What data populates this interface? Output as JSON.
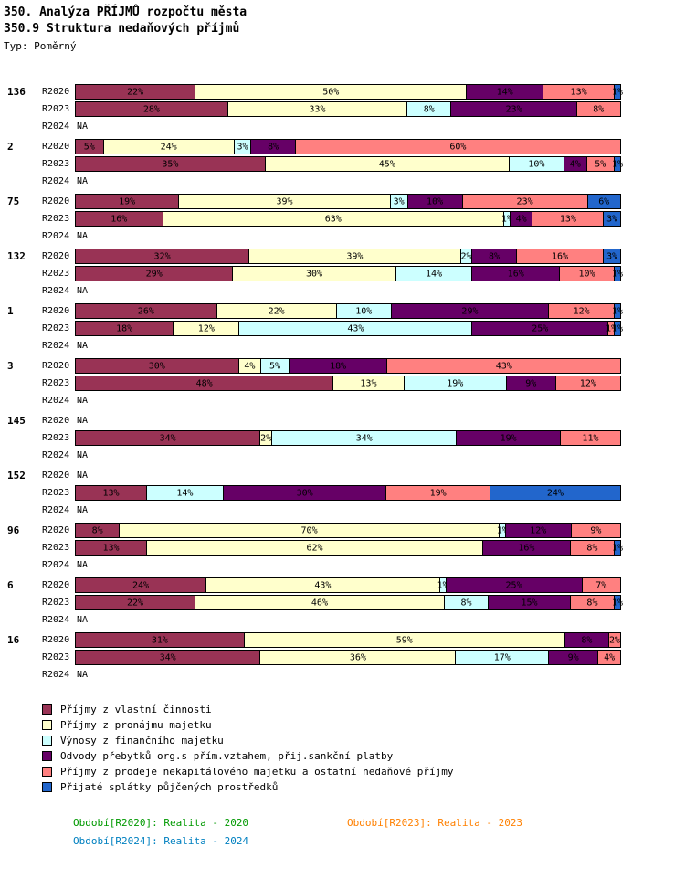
{
  "header": {
    "title1": "350. Analýza PŘÍJMŮ rozpočtu města",
    "title2": "350.9 Struktura nedaňových příjmů",
    "type_label": "Typ: Poměrný"
  },
  "na_label": "NA",
  "chart_data": {
    "type": "bar",
    "variant": "horizontal-stacked-100percent",
    "unit": "%",
    "row_labels": [
      "R2020",
      "R2023",
      "R2024"
    ],
    "legend": [
      {
        "label": "Příjmy z vlastní činnosti",
        "color": "#993355"
      },
      {
        "label": "Příjmy z pronájmu majetku",
        "color": "#FFFFCC"
      },
      {
        "label": "Výnosy z finančního majetku",
        "color": "#CCFFFF"
      },
      {
        "label": "Odvody přebytků org.s přím.vztahem, přij.sankční platby",
        "color": "#660066"
      },
      {
        "label": "Příjmy z prodeje nekapitálového majetku a ostatní nedaňové příjmy",
        "color": "#FF8080"
      },
      {
        "label": "Přijaté splátky půjčených prostředků",
        "color": "#2266CC"
      }
    ],
    "groups": [
      {
        "id": "136",
        "rows": [
          {
            "label": "R2020",
            "segments": [
              [
                0,
                22
              ],
              [
                1,
                50
              ],
              [
                3,
                14
              ],
              [
                4,
                13
              ],
              [
                5,
                1
              ]
            ]
          },
          {
            "label": "R2023",
            "segments": [
              [
                0,
                28
              ],
              [
                1,
                33
              ],
              [
                2,
                8
              ],
              [
                3,
                23
              ],
              [
                4,
                8
              ]
            ]
          },
          {
            "label": "R2024",
            "na": true
          }
        ]
      },
      {
        "id": "2",
        "rows": [
          {
            "label": "R2020",
            "segments": [
              [
                0,
                5
              ],
              [
                1,
                24
              ],
              [
                2,
                3
              ],
              [
                3,
                8
              ],
              [
                4,
                60
              ]
            ]
          },
          {
            "label": "R2023",
            "segments": [
              [
                0,
                35
              ],
              [
                1,
                45
              ],
              [
                2,
                10
              ],
              [
                3,
                4
              ],
              [
                4,
                5
              ],
              [
                5,
                1
              ]
            ]
          },
          {
            "label": "R2024",
            "na": true
          }
        ]
      },
      {
        "id": "75",
        "rows": [
          {
            "label": "R2020",
            "segments": [
              [
                0,
                19
              ],
              [
                1,
                39
              ],
              [
                2,
                3
              ],
              [
                3,
                10
              ],
              [
                4,
                23
              ],
              [
                5,
                6
              ]
            ]
          },
          {
            "label": "R2023",
            "segments": [
              [
                0,
                16
              ],
              [
                1,
                63
              ],
              [
                2,
                1
              ],
              [
                3,
                4
              ],
              [
                4,
                13
              ],
              [
                5,
                3
              ]
            ]
          },
          {
            "label": "R2024",
            "na": true
          }
        ]
      },
      {
        "id": "132",
        "rows": [
          {
            "label": "R2020",
            "segments": [
              [
                0,
                32
              ],
              [
                1,
                39
              ],
              [
                2,
                2
              ],
              [
                3,
                8
              ],
              [
                4,
                16
              ],
              [
                5,
                3
              ]
            ]
          },
          {
            "label": "R2023",
            "segments": [
              [
                0,
                29
              ],
              [
                1,
                30
              ],
              [
                2,
                14
              ],
              [
                3,
                16
              ],
              [
                4,
                10
              ],
              [
                5,
                1
              ]
            ]
          },
          {
            "label": "R2024",
            "na": true
          }
        ]
      },
      {
        "id": "1",
        "rows": [
          {
            "label": "R2020",
            "segments": [
              [
                0,
                26
              ],
              [
                1,
                22
              ],
              [
                2,
                10
              ],
              [
                3,
                29
              ],
              [
                4,
                12
              ],
              [
                5,
                1
              ]
            ]
          },
          {
            "label": "R2023",
            "segments": [
              [
                0,
                18
              ],
              [
                1,
                12
              ],
              [
                2,
                43
              ],
              [
                3,
                25
              ],
              [
                4,
                1
              ],
              [
                5,
                1
              ]
            ]
          },
          {
            "label": "R2024",
            "na": true
          }
        ]
      },
      {
        "id": "3",
        "rows": [
          {
            "label": "R2020",
            "segments": [
              [
                0,
                30
              ],
              [
                1,
                4
              ],
              [
                2,
                5
              ],
              [
                3,
                18
              ],
              [
                4,
                43
              ]
            ]
          },
          {
            "label": "R2023",
            "segments": [
              [
                0,
                48
              ],
              [
                1,
                13
              ],
              [
                2,
                19
              ],
              [
                3,
                9
              ],
              [
                4,
                12
              ]
            ]
          },
          {
            "label": "R2024",
            "na": true
          }
        ]
      },
      {
        "id": "145",
        "rows": [
          {
            "label": "R2020",
            "na": true
          },
          {
            "label": "R2023",
            "segments": [
              [
                0,
                34
              ],
              [
                1,
                2
              ],
              [
                2,
                34
              ],
              [
                3,
                19
              ],
              [
                4,
                11
              ]
            ]
          },
          {
            "label": "R2024",
            "na": true
          }
        ]
      },
      {
        "id": "152",
        "rows": [
          {
            "label": "R2020",
            "na": true
          },
          {
            "label": "R2023",
            "segments": [
              [
                0,
                13
              ],
              [
                2,
                14
              ],
              [
                3,
                30
              ],
              [
                4,
                19
              ],
              [
                5,
                24
              ]
            ]
          },
          {
            "label": "R2024",
            "na": true
          }
        ]
      },
      {
        "id": "96",
        "rows": [
          {
            "label": "R2020",
            "segments": [
              [
                0,
                8
              ],
              [
                1,
                70
              ],
              [
                2,
                1
              ],
              [
                3,
                12
              ],
              [
                4,
                9
              ]
            ]
          },
          {
            "label": "R2023",
            "segments": [
              [
                0,
                13
              ],
              [
                1,
                62
              ],
              [
                3,
                16
              ],
              [
                4,
                8
              ],
              [
                5,
                1
              ]
            ]
          },
          {
            "label": "R2024",
            "na": true
          }
        ]
      },
      {
        "id": "6",
        "rows": [
          {
            "label": "R2020",
            "segments": [
              [
                0,
                24
              ],
              [
                1,
                43
              ],
              [
                2,
                1
              ],
              [
                3,
                25
              ],
              [
                4,
                7
              ]
            ]
          },
          {
            "label": "R2023",
            "segments": [
              [
                0,
                22
              ],
              [
                1,
                46
              ],
              [
                2,
                8
              ],
              [
                3,
                15
              ],
              [
                4,
                8
              ],
              [
                5,
                1
              ]
            ]
          },
          {
            "label": "R2024",
            "na": true
          }
        ]
      },
      {
        "id": "16",
        "rows": [
          {
            "label": "R2020",
            "segments": [
              [
                0,
                31
              ],
              [
                1,
                59
              ],
              [
                3,
                8
              ],
              [
                4,
                2
              ]
            ]
          },
          {
            "label": "R2023",
            "segments": [
              [
                0,
                34
              ],
              [
                1,
                36
              ],
              [
                2,
                17
              ],
              [
                3,
                9
              ],
              [
                4,
                4
              ]
            ]
          },
          {
            "label": "R2024",
            "na": true
          }
        ]
      }
    ]
  },
  "footer": {
    "periods": [
      {
        "label": "Období[R2020]:",
        "value": "Realita - 2020",
        "color": "#009900"
      },
      {
        "label": "Období[R2023]:",
        "value": "Realita - 2023",
        "color": "#FF8000"
      },
      {
        "label": "Období[R2024]:",
        "value": "Realita - 2024",
        "color": "#0080C0"
      }
    ]
  }
}
